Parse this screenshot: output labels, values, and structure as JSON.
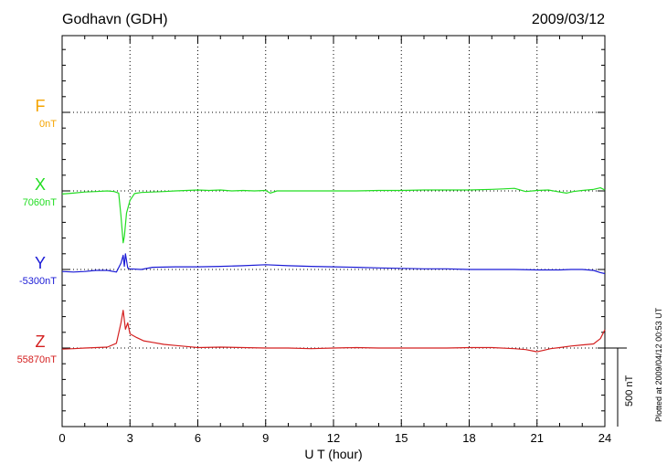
{
  "header": {
    "station": "Godhavn (GDH)",
    "date": "2009/03/12"
  },
  "footer": {
    "plotted_at": "Plotted at 2009/04/12 00:53 UT"
  },
  "scale_bar": {
    "label": "500 nT",
    "value_nT": 500
  },
  "colors": {
    "F": "#f5a400",
    "X": "#22dd22",
    "Y": "#1a1ad6",
    "Z": "#d42020",
    "axis": "#000000",
    "grid": "#000000"
  },
  "chart_data": {
    "type": "line",
    "title": "Godhavn (GDH)",
    "date": "2009/03/12",
    "xlabel": "U T (hour)",
    "ylabel": "",
    "xlim": [
      0,
      24
    ],
    "x_ticks": [
      0,
      3,
      6,
      9,
      12,
      15,
      18,
      21,
      24
    ],
    "x_tick_labels": [
      "0",
      "3",
      "6",
      "9",
      "12",
      "15",
      "18",
      "21",
      "24"
    ],
    "unit": "nT",
    "channel_spacing_nT": 500,
    "grid": true,
    "series": [
      {
        "name": "F",
        "baseline_label": "0nT",
        "baseline_nT": 0,
        "color": "#f5a400",
        "x": [],
        "y": []
      },
      {
        "name": "X",
        "baseline_label": "7060nT",
        "baseline_nT": 7060,
        "color": "#22dd22",
        "x": [
          0,
          0.5,
          1.0,
          1.5,
          2.0,
          2.3,
          2.5,
          2.6,
          2.7,
          2.75,
          2.85,
          3.0,
          3.2,
          3.5,
          4.0,
          4.5,
          5.0,
          5.5,
          6.0,
          6.5,
          7.0,
          7.5,
          8.0,
          8.5,
          9.0,
          9.2,
          9.5,
          10.0,
          11.0,
          12.0,
          13.0,
          14.0,
          15.0,
          16.0,
          17.0,
          18.0,
          19.0,
          19.5,
          20.0,
          20.5,
          21.0,
          21.5,
          22.0,
          22.3,
          22.6,
          23.0,
          23.5,
          23.8,
          24.0
        ],
        "y": [
          7040,
          7046,
          7053,
          7056,
          7060,
          7056,
          7046,
          6900,
          6730,
          6770,
          6920,
          7000,
          7043,
          7050,
          7053,
          7056,
          7060,
          7063,
          7066,
          7063,
          7066,
          7060,
          7063,
          7060,
          7063,
          7046,
          7060,
          7060,
          7060,
          7060,
          7060,
          7063,
          7063,
          7066,
          7066,
          7066,
          7070,
          7073,
          7076,
          7056,
          7063,
          7066,
          7053,
          7046,
          7056,
          7063,
          7070,
          7080,
          7066
        ]
      },
      {
        "name": "Y",
        "baseline_label": "-5300nT",
        "baseline_nT": -5300,
        "color": "#1a1ad6",
        "x": [
          0,
          0.5,
          1.0,
          1.5,
          2.0,
          2.4,
          2.6,
          2.7,
          2.75,
          2.8,
          2.9,
          3.0,
          3.5,
          4.0,
          5.0,
          6.0,
          7.0,
          8.0,
          9.0,
          10.0,
          11.0,
          12.0,
          13.0,
          14.0,
          15.0,
          16.0,
          17.0,
          18.0,
          19.0,
          20.0,
          21.0,
          22.0,
          22.5,
          23.0,
          23.5,
          23.8,
          24.0
        ],
        "y": [
          -5313,
          -5316,
          -5313,
          -5306,
          -5306,
          -5316,
          -5260,
          -5210,
          -5280,
          -5200,
          -5290,
          -5296,
          -5300,
          -5286,
          -5283,
          -5283,
          -5280,
          -5276,
          -5270,
          -5276,
          -5280,
          -5283,
          -5286,
          -5290,
          -5293,
          -5296,
          -5296,
          -5300,
          -5300,
          -5300,
          -5303,
          -5303,
          -5300,
          -5300,
          -5306,
          -5320,
          -5326
        ]
      },
      {
        "name": "Z",
        "baseline_label": "55870nT",
        "baseline_nT": 55870,
        "color": "#d42020",
        "x": [
          0,
          0.5,
          1.0,
          1.5,
          2.0,
          2.4,
          2.6,
          2.7,
          2.8,
          2.9,
          3.0,
          3.3,
          3.6,
          4.0,
          4.5,
          5.0,
          5.5,
          6.0,
          7.0,
          8.0,
          9.0,
          10.0,
          11.0,
          12.0,
          13.0,
          14.0,
          15.0,
          16.0,
          17.0,
          18.0,
          19.0,
          20.0,
          20.5,
          21.0,
          21.3,
          21.6,
          22.0,
          22.5,
          23.0,
          23.5,
          23.8,
          24.0
        ],
        "y": [
          55863,
          55866,
          55870,
          55873,
          55876,
          55900,
          56030,
          56110,
          55990,
          56030,
          55960,
          55936,
          55916,
          55906,
          55893,
          55886,
          55880,
          55873,
          55876,
          55873,
          55870,
          55870,
          55866,
          55870,
          55873,
          55870,
          55870,
          55870,
          55870,
          55873,
          55873,
          55866,
          55860,
          55846,
          55856,
          55866,
          55873,
          55883,
          55890,
          55896,
          55930,
          55986
        ]
      }
    ]
  }
}
